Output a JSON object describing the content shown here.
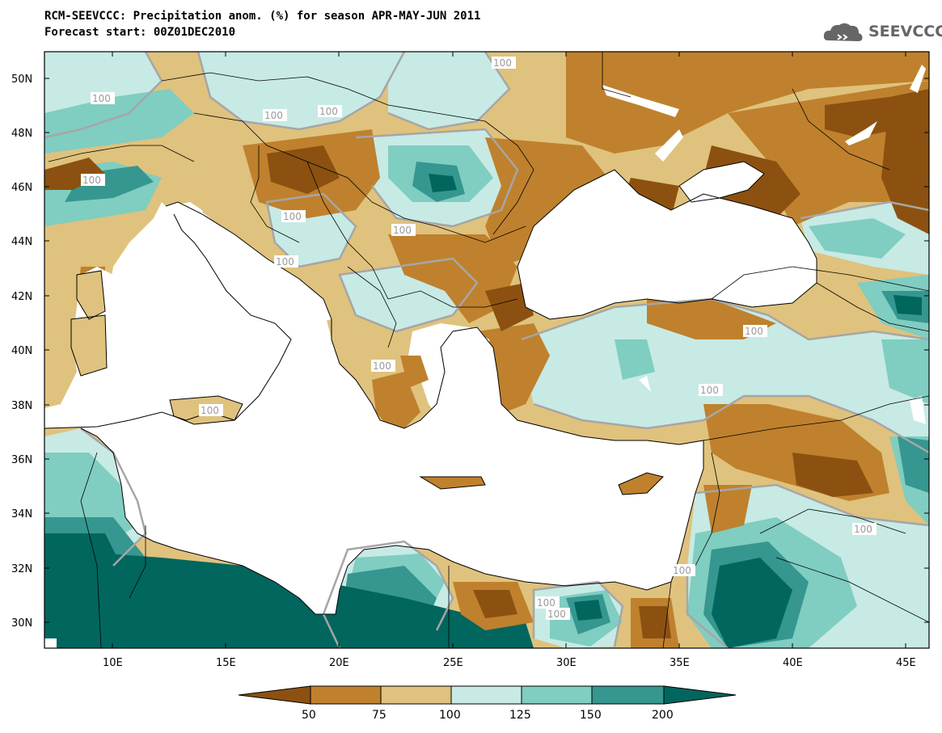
{
  "header": {
    "title_line1": "RCM-SEEVCCC: Precipitation anom. (%) for season APR-MAY-JUN 2011",
    "title_line2": "Forecast start: 00Z01DEC2010",
    "logo_text": "SEEVCCC",
    "logo_icon": "cloud-logo-icon"
  },
  "axes": {
    "lat_labels": [
      "50N",
      "48N",
      "46N",
      "44N",
      "42N",
      "40N",
      "38N",
      "36N",
      "34N",
      "32N",
      "30N"
    ],
    "lon_labels": [
      "10E",
      "15E",
      "20E",
      "25E",
      "30E",
      "35E",
      "40E",
      "45E"
    ],
    "lat_range": [
      29,
      51
    ],
    "lon_range": [
      7,
      46
    ]
  },
  "contour_labels": [
    "100",
    "100",
    "100",
    "100",
    "100",
    "100",
    "100",
    "100",
    "100",
    "100",
    "100",
    "100",
    "100",
    "100",
    "100",
    "100"
  ],
  "colorbar": {
    "tick_labels": [
      "50",
      "75",
      "100",
      "125",
      "150",
      "200"
    ],
    "colors": [
      "#8c5110",
      "#bf812d",
      "#dfc27d",
      "#c7eae5",
      "#80cdc1",
      "#35978f",
      "#01665e"
    ],
    "units": "%"
  },
  "colors": {
    "contour_line": "#a6a6a6",
    "land_mask_sea": "#ffffff"
  }
}
